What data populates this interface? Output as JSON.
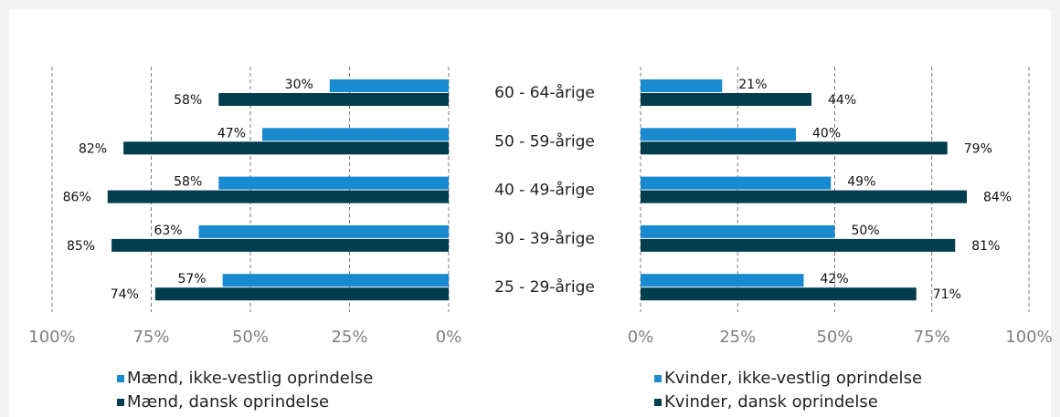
{
  "chart_data": [
    {
      "type": "bar",
      "categories": [
        "60 - 64-årige",
        "50 - 59-årige",
        "40 - 49-årige",
        "30 - 39-årige",
        "25 - 29-årige"
      ],
      "series": [
        {
          "name": "Mænd, ikke-vestlig oprindelse",
          "color": "#1a8ad0",
          "values": [
            30,
            47,
            58,
            63,
            57
          ],
          "value_labels": [
            "30%",
            "47%",
            "58%",
            "63%",
            "57%"
          ]
        },
        {
          "name": "Mænd, dansk oprindelse",
          "color": "#003d4f",
          "values": [
            58,
            82,
            86,
            85,
            74
          ],
          "value_labels": [
            "58%",
            "82%",
            "86%",
            "85%",
            "74%"
          ]
        }
      ],
      "xlim": [
        100,
        0
      ],
      "xticks": [
        {
          "value": 100,
          "label": "100%"
        },
        {
          "value": 75,
          "label": "75%"
        },
        {
          "value": 50,
          "label": "50%"
        },
        {
          "value": 25,
          "label": "25%"
        },
        {
          "value": 0,
          "label": "0%"
        }
      ],
      "grid": true
    },
    {
      "type": "bar",
      "series": [
        {
          "name": "Kvinder, ikke-vestlig oprindelse",
          "color": "#1a8ad0",
          "values": [
            21,
            40,
            49,
            50,
            42
          ],
          "value_labels": [
            "21%",
            "40%",
            "49%",
            "50%",
            "42%"
          ]
        },
        {
          "name": "Kvinder, dansk oprindelse",
          "color": "#003d4f",
          "values": [
            44,
            79,
            84,
            81,
            71
          ],
          "value_labels": [
            "44%",
            "79%",
            "84%",
            "81%",
            "71%"
          ]
        }
      ],
      "xlim": [
        0,
        100
      ],
      "xticks": [
        {
          "value": 0,
          "label": "0%"
        },
        {
          "value": 25,
          "label": "25%"
        },
        {
          "value": 50,
          "label": "50%"
        },
        {
          "value": 75,
          "label": "75%"
        },
        {
          "value": 100,
          "label": "100%"
        }
      ],
      "grid": true
    }
  ]
}
